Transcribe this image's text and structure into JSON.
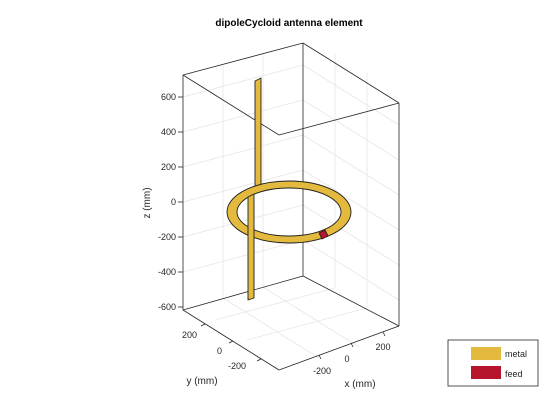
{
  "figure": {
    "title": "dipoleCycloid antenna element",
    "axes": {
      "x": {
        "label": "x (mm)",
        "ticks": [
          "-200",
          "0",
          "200"
        ]
      },
      "y": {
        "label": "y (mm)",
        "ticks": [
          "200",
          "0",
          "-200"
        ]
      },
      "z": {
        "label": "z (mm)",
        "ticks": [
          "600",
          "400",
          "200",
          "0",
          "-200",
          "-400",
          "-600"
        ]
      }
    },
    "legend": {
      "placement": "bottom-right",
      "items": [
        {
          "label": "metal",
          "color": "#e3b93e"
        },
        {
          "label": "feed",
          "color": "#b6152b"
        }
      ]
    },
    "colors": {
      "metal": "#e3b93e",
      "feed": "#b6152b",
      "edge": "#222222",
      "grid": "#e6e6e6",
      "box": "#262626"
    }
  }
}
